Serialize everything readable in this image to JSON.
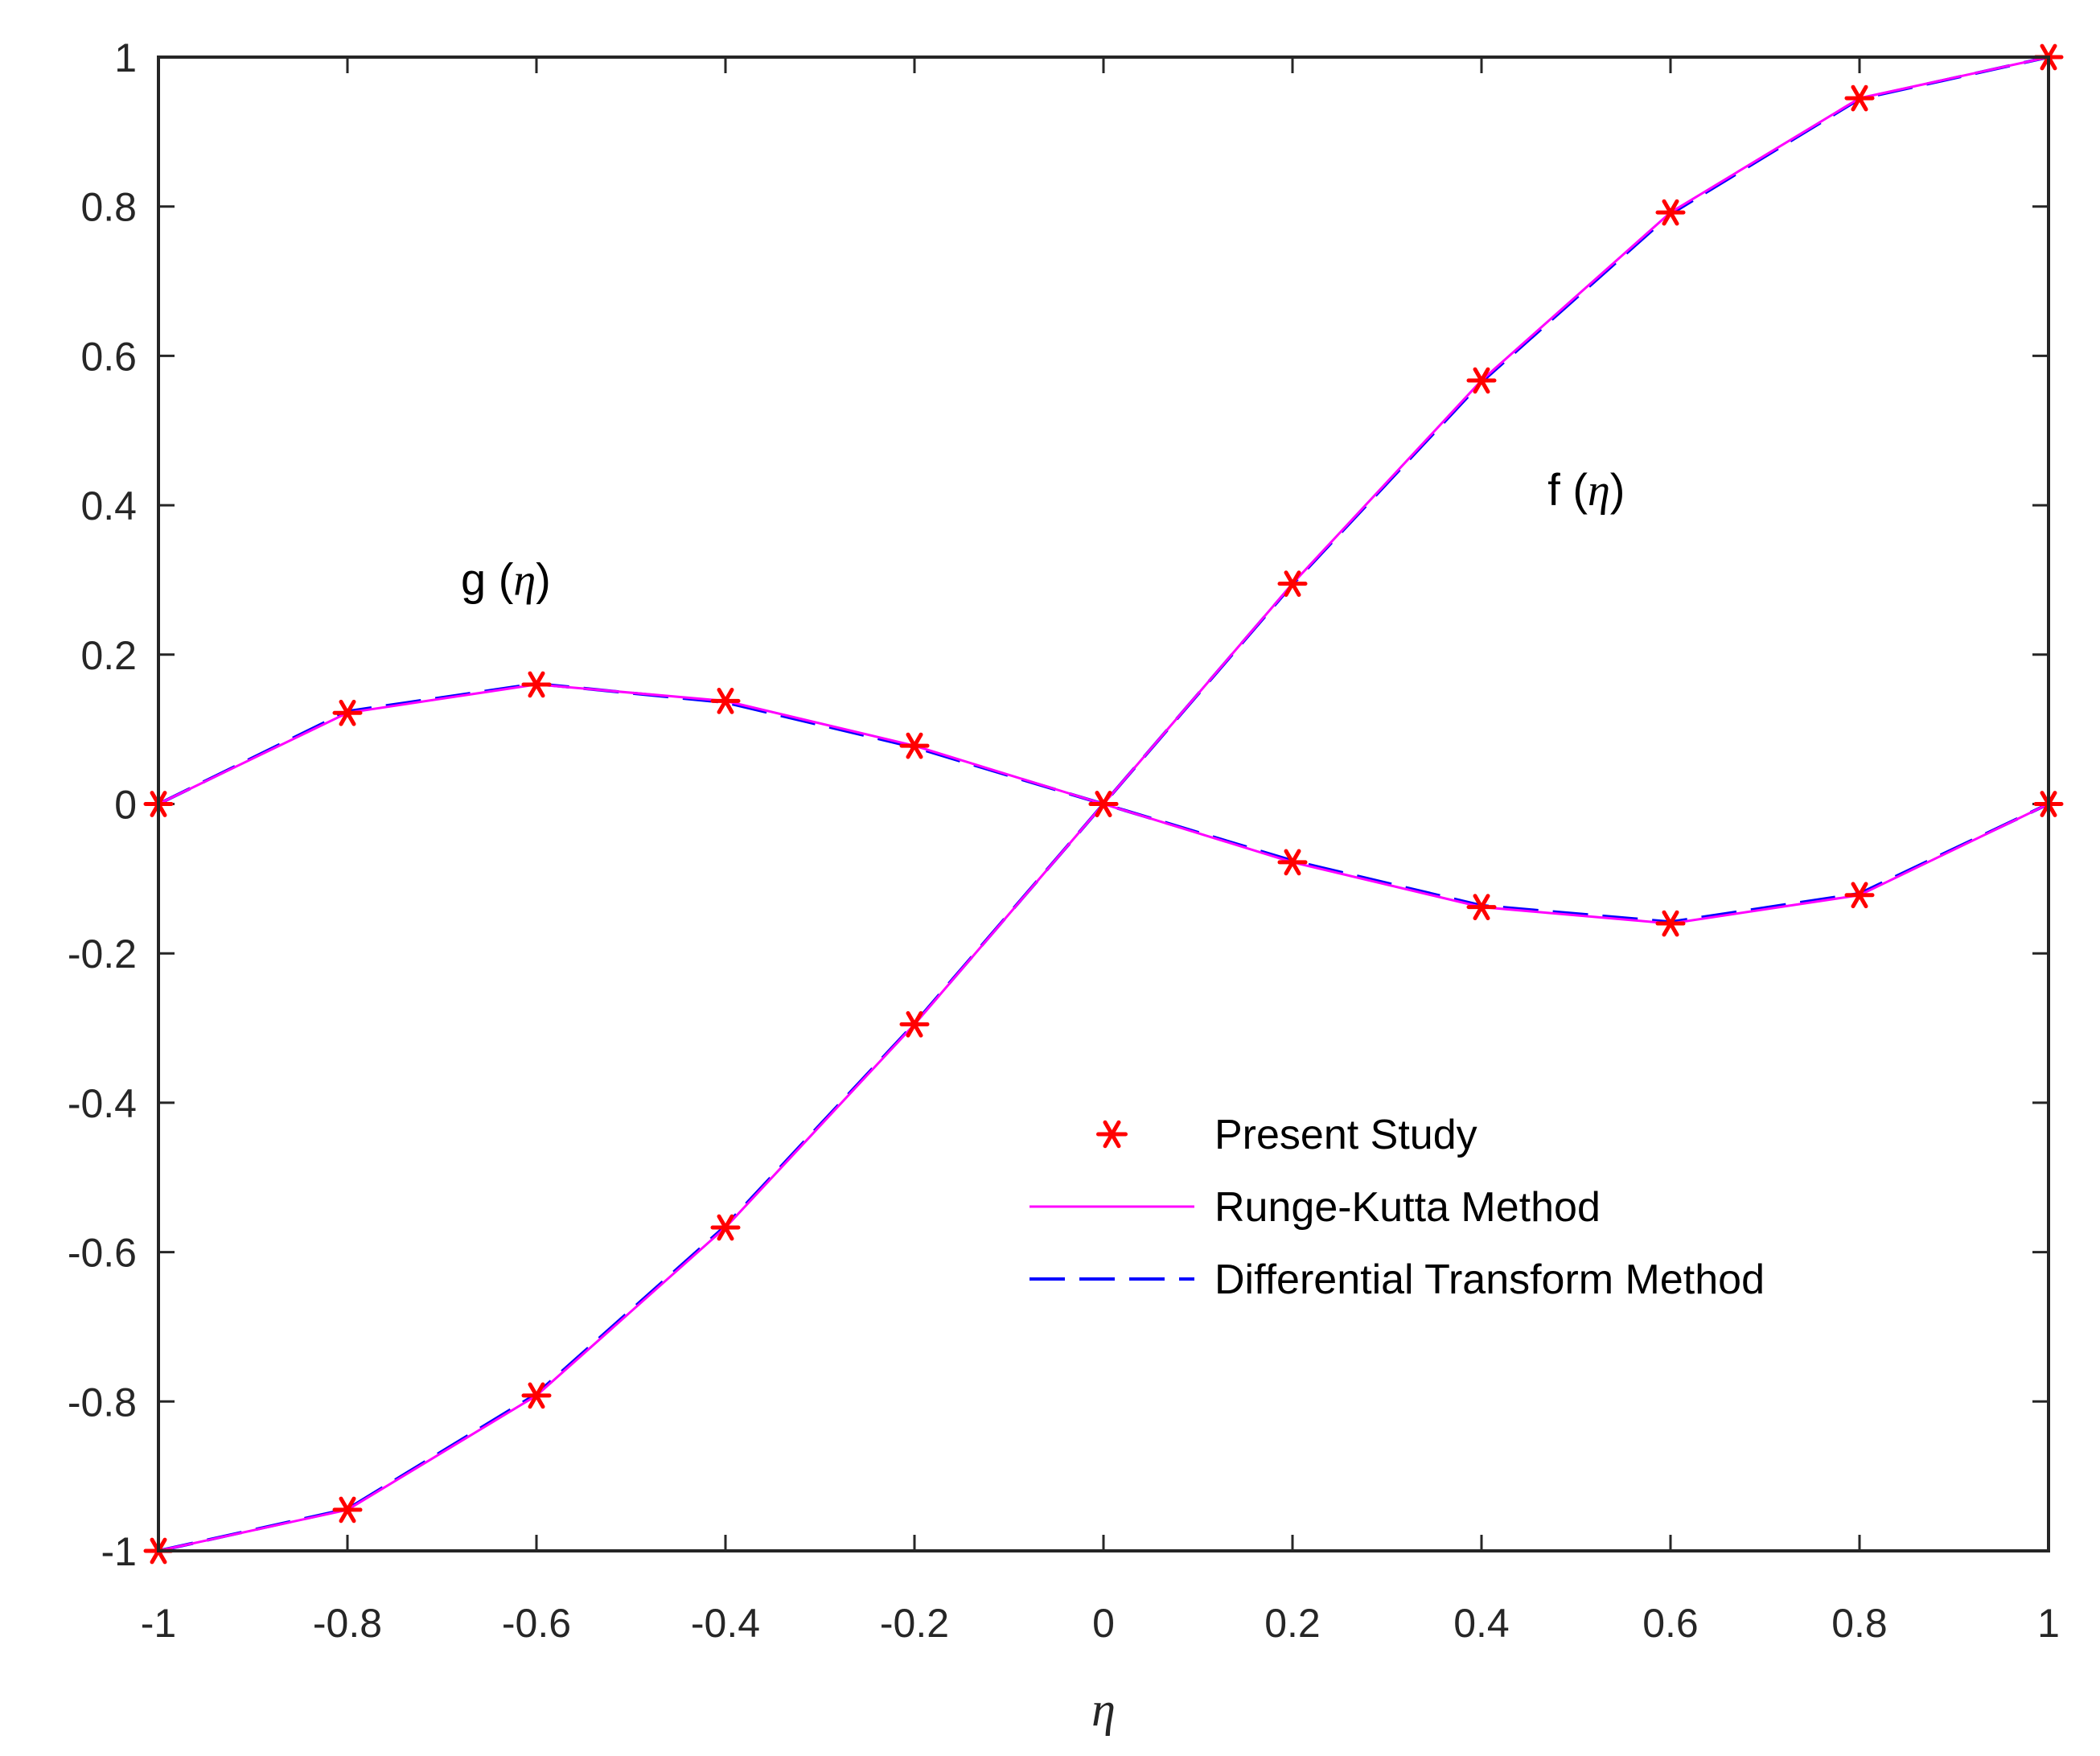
{
  "chart_data": {
    "type": "line",
    "title": "",
    "xlabel": "η",
    "ylabel": "",
    "xlim": [
      -1,
      1
    ],
    "ylim": [
      -1,
      1
    ],
    "xticks": [
      -1,
      -0.8,
      -0.6,
      -0.4,
      -0.2,
      0,
      0.2,
      0.4,
      0.6,
      0.8,
      1
    ],
    "yticks": [
      -1,
      -0.8,
      -0.6,
      -0.4,
      -0.2,
      0,
      0.2,
      0.4,
      0.6,
      0.8,
      1
    ],
    "xtick_labels": [
      "-1",
      "-0.8",
      "-0.6",
      "-0.4",
      "-0.2",
      "0",
      "0.2",
      "0.4",
      "0.6",
      "0.8",
      "1"
    ],
    "ytick_labels": [
      "-1",
      "-0.8",
      "-0.6",
      "-0.4",
      "-0.2",
      "0",
      "0.2",
      "0.4",
      "0.6",
      "0.8",
      "1"
    ],
    "grid": false,
    "legend_position": "lower-right",
    "x": [
      -1,
      -0.8,
      -0.6,
      -0.4,
      -0.2,
      0,
      0.2,
      0.4,
      0.6,
      0.8,
      1
    ],
    "curves": [
      {
        "name": "f",
        "label_prefix": "f (",
        "label_symbol": "η",
        "label_suffix": ")",
        "label_at": [
          0.47,
          0.4
        ],
        "present_study": [
          -1,
          -0.945,
          -0.792,
          -0.567,
          -0.295,
          0,
          0.295,
          0.567,
          0.792,
          0.945,
          1
        ],
        "runge_kutta": [
          -1,
          -0.945,
          -0.792,
          -0.567,
          -0.295,
          0,
          0.295,
          0.567,
          0.792,
          0.945,
          1
        ],
        "dtm": [
          -1,
          -0.944,
          -0.79,
          -0.565,
          -0.294,
          0,
          0.294,
          0.565,
          0.79,
          0.944,
          1
        ]
      },
      {
        "name": "g",
        "label_prefix": "g (",
        "label_symbol": "η",
        "label_suffix": ")",
        "label_at": [
          -0.68,
          0.28
        ],
        "present_study": [
          0,
          0.122,
          0.16,
          0.138,
          0.078,
          0,
          -0.078,
          -0.138,
          -0.16,
          -0.122,
          0
        ],
        "runge_kutta": [
          0,
          0.122,
          0.16,
          0.138,
          0.078,
          0,
          -0.078,
          -0.138,
          -0.16,
          -0.122,
          0
        ],
        "dtm": [
          0,
          0.124,
          0.161,
          0.136,
          0.076,
          0,
          -0.076,
          -0.136,
          -0.158,
          -0.12,
          0
        ]
      }
    ],
    "legend": [
      {
        "label": "Present Study",
        "style": "marker-asterisk",
        "color": "#ff0000"
      },
      {
        "label": "Runge-Kutta Method",
        "style": "solid",
        "color": "#ff00ff"
      },
      {
        "label": "Differential Transform Method",
        "style": "dashed",
        "color": "#0000ff"
      }
    ]
  }
}
